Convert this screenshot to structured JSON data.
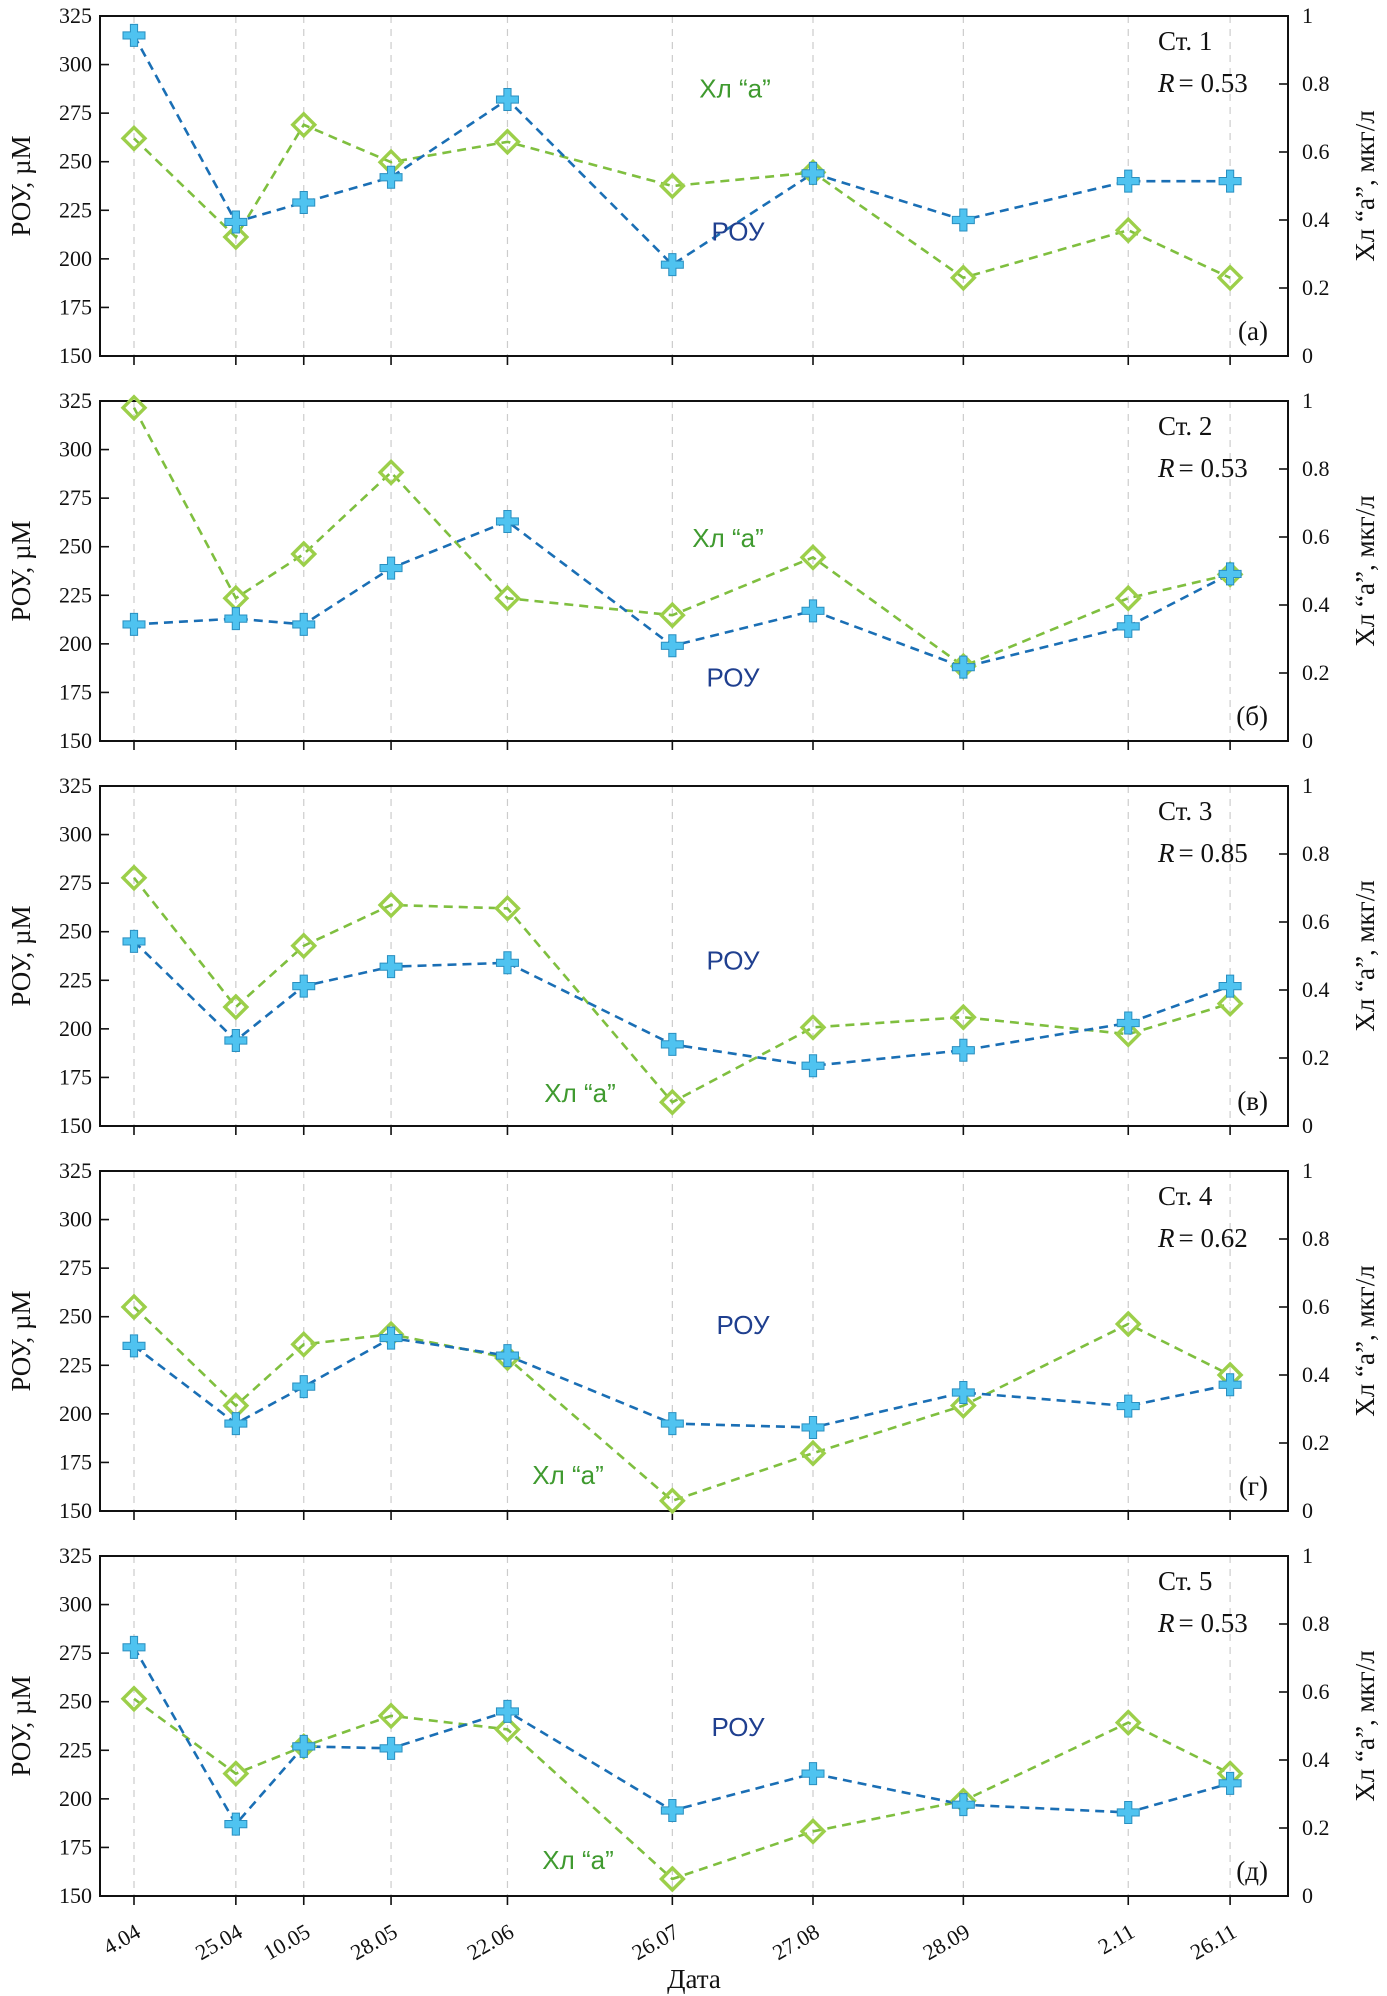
{
  "figure": {
    "xlabel": "Дата",
    "left_ylabel": "РОУ, µM",
    "right_ylabel": "Хл “а”, мкг/л",
    "categories": [
      "4.04",
      "25.04",
      "10.05",
      "28.05",
      "22.06",
      "26.07",
      "27.08",
      "28.09",
      "2.11",
      "26.11"
    ],
    "category_positions": [
      0,
      21,
      35,
      53,
      77,
      111,
      140,
      171,
      205,
      226
    ],
    "left_ylim": [
      150,
      325
    ],
    "left_yticks": [
      150,
      175,
      200,
      225,
      250,
      275,
      300,
      325
    ],
    "right_ylim": [
      0,
      1
    ],
    "right_yticks": [
      "0",
      "0.2",
      "0.4",
      "0.6",
      "0.8",
      "1"
    ],
    "colors": {
      "rou_line": "#1a6fb5",
      "rou_marker": "#4fc3f0",
      "chl_line": "#7fbf3f",
      "chl_marker": "#9ccf4a",
      "rou_label": "#1f3f8f",
      "chl_label": "#3f9a2f",
      "grid": "#cccccc"
    },
    "grid": "vertical dashed"
  },
  "chart_data": [
    {
      "type": "line",
      "panel": "(а)",
      "station": "Ст. 1",
      "r_label": "R",
      "r_value": "= 0.53",
      "rou_label": "РОУ",
      "chl_label": "Хл “а”",
      "series": [
        {
          "name": "РОУ",
          "axis": "left",
          "values": [
            315,
            219,
            229,
            242,
            282,
            197,
            244,
            220,
            240,
            240
          ]
        },
        {
          "name": "Хл “а”",
          "axis": "right",
          "values": [
            0.64,
            0.35,
            0.68,
            0.57,
            0.63,
            0.5,
            0.54,
            0.23,
            0.37,
            0.23
          ]
        }
      ]
    },
    {
      "type": "line",
      "panel": "(б)",
      "station": "Ст. 2",
      "r_label": "R",
      "r_value": "= 0.53",
      "rou_label": "РОУ",
      "chl_label": "Хл “а”",
      "series": [
        {
          "name": "РОУ",
          "axis": "left",
          "values": [
            210,
            213,
            210,
            239,
            263,
            199,
            217,
            188,
            209,
            236
          ]
        },
        {
          "name": "Хл “а”",
          "axis": "right",
          "values": [
            0.98,
            0.42,
            0.55,
            0.79,
            0.42,
            0.37,
            0.54,
            0.22,
            0.42,
            0.49
          ]
        }
      ]
    },
    {
      "type": "line",
      "panel": "(в)",
      "station": "Ст. 3",
      "r_label": "R",
      "r_value": "= 0.85",
      "rou_label": "РОУ",
      "chl_label": "Хл “а”",
      "series": [
        {
          "name": "РОУ",
          "axis": "left",
          "values": [
            245,
            194,
            222,
            232,
            234,
            192,
            181,
            189,
            203,
            222
          ]
        },
        {
          "name": "Хл “а”",
          "axis": "right",
          "values": [
            0.73,
            0.35,
            0.53,
            0.65,
            0.64,
            0.07,
            0.29,
            0.32,
            0.27,
            0.36
          ]
        }
      ]
    },
    {
      "type": "line",
      "panel": "(г)",
      "station": "Ст. 4",
      "r_label": "R",
      "r_value": "= 0.62",
      "rou_label": "РОУ",
      "chl_label": "Хл “а”",
      "series": [
        {
          "name": "РОУ",
          "axis": "left",
          "values": [
            235,
            195,
            214,
            239,
            230,
            195,
            193,
            211,
            204,
            215
          ]
        },
        {
          "name": "Хл “а”",
          "axis": "right",
          "values": [
            0.6,
            0.31,
            0.49,
            0.52,
            0.45,
            0.03,
            0.17,
            0.31,
            0.55,
            0.4
          ]
        }
      ]
    },
    {
      "type": "line",
      "panel": "(д)",
      "station": "Ст. 5",
      "r_label": "R",
      "r_value": "= 0.53",
      "rou_label": "РОУ",
      "chl_label": "Хл “а”",
      "series": [
        {
          "name": "РОУ",
          "axis": "left",
          "values": [
            278,
            187,
            227,
            226,
            245,
            194,
            213,
            197,
            193,
            208
          ]
        },
        {
          "name": "Хл “а”",
          "axis": "right",
          "values": [
            0.58,
            0.36,
            0.44,
            0.53,
            0.49,
            0.05,
            0.19,
            0.28,
            0.51,
            0.36
          ]
        }
      ]
    }
  ]
}
